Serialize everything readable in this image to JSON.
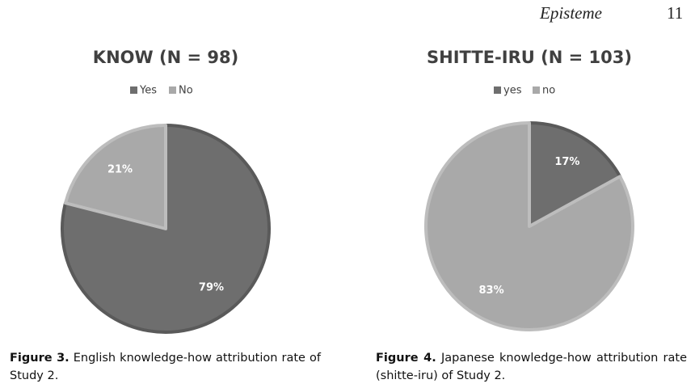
{
  "header": {
    "journal": "Episteme",
    "page": "11"
  },
  "chart_data": [
    {
      "type": "pie",
      "title": "KNOW (N = 98)",
      "categories": [
        "Yes",
        "No"
      ],
      "values": [
        79,
        21
      ],
      "value_labels": [
        "79%",
        "21%"
      ],
      "colors": [
        "#6e6e6e",
        "#a9a9a9"
      ],
      "legend": "top"
    },
    {
      "type": "pie",
      "title": "SHITTE-IRU (N = 103)",
      "categories": [
        "yes",
        "no"
      ],
      "values": [
        17,
        83
      ],
      "value_labels": [
        "17%",
        "83%"
      ],
      "colors": [
        "#6e6e6e",
        "#a9a9a9"
      ],
      "legend": "top"
    }
  ],
  "captions": [
    {
      "label": "Figure 3.",
      "text": "English knowledge-how attribution rate of Study 2."
    },
    {
      "label": "Figure 4.",
      "text": "Japanese knowledge-how attribution rate (shitte-iru) of Study 2."
    }
  ]
}
